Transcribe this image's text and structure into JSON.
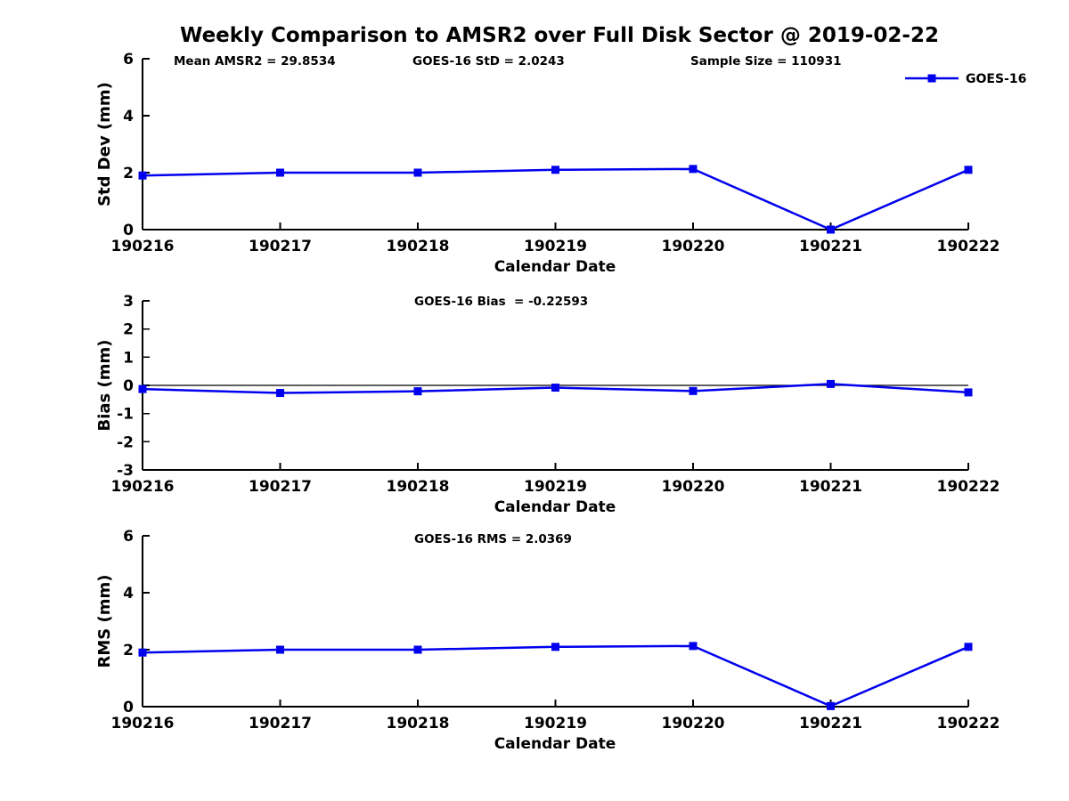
{
  "figure": {
    "title": "Weekly Comparison to AMSR2 over Full Disk Sector @ 2019-02-22",
    "background_color": "#ffffff",
    "line_color": "#0000ee",
    "axis_color": "#000000",
    "marker": "square"
  },
  "legend": {
    "position": "top-right",
    "entries": [
      {
        "label": "GOES-16",
        "color": "#0000ee",
        "marker": "square"
      }
    ]
  },
  "chart_data": [
    {
      "type": "line",
      "subplot": "std-dev",
      "annotations": [
        "Mean AMSR2 = 29.8534",
        "GOES-16 StD = 2.0243",
        "Sample Size = 110931"
      ],
      "categories": [
        "190216",
        "190217",
        "190218",
        "190219",
        "190220",
        "190221",
        "190222"
      ],
      "series": [
        {
          "name": "GOES-16",
          "values": [
            1.9,
            2.0,
            2.0,
            2.1,
            2.13,
            0.0,
            2.1
          ]
        }
      ],
      "xlabel": "Calendar Date",
      "ylabel": "Std Dev (mm)",
      "ylim": [
        0,
        6
      ],
      "yticks": [
        0,
        2,
        4,
        6
      ],
      "grid": false,
      "zero_line": false,
      "legend_entry": "GOES-16"
    },
    {
      "type": "line",
      "subplot": "bias",
      "annotations": [
        "GOES-16 Bias  = -0.22593"
      ],
      "categories": [
        "190216",
        "190217",
        "190218",
        "190219",
        "190220",
        "190221",
        "190222"
      ],
      "series": [
        {
          "name": "GOES-16",
          "values": [
            -0.13,
            -0.27,
            -0.21,
            -0.08,
            -0.2,
            0.05,
            -0.25
          ]
        }
      ],
      "xlabel": "Calendar Date",
      "ylabel": "Bias (mm)",
      "ylim": [
        -3,
        3
      ],
      "yticks": [
        3,
        2,
        1,
        0,
        -1,
        -2,
        -3
      ],
      "grid": false,
      "zero_line": true
    },
    {
      "type": "line",
      "subplot": "rms",
      "annotations": [
        "GOES-16 RMS = 2.0369"
      ],
      "categories": [
        "190216",
        "190217",
        "190218",
        "190219",
        "190220",
        "190221",
        "190222"
      ],
      "series": [
        {
          "name": "GOES-16",
          "values": [
            1.9,
            2.0,
            2.0,
            2.1,
            2.13,
            0.02,
            2.1
          ]
        }
      ],
      "xlabel": "Calendar Date",
      "ylabel": "RMS (mm)",
      "ylim": [
        0,
        6
      ],
      "yticks": [
        0,
        2,
        4,
        6
      ],
      "grid": false,
      "zero_line": false
    }
  ]
}
